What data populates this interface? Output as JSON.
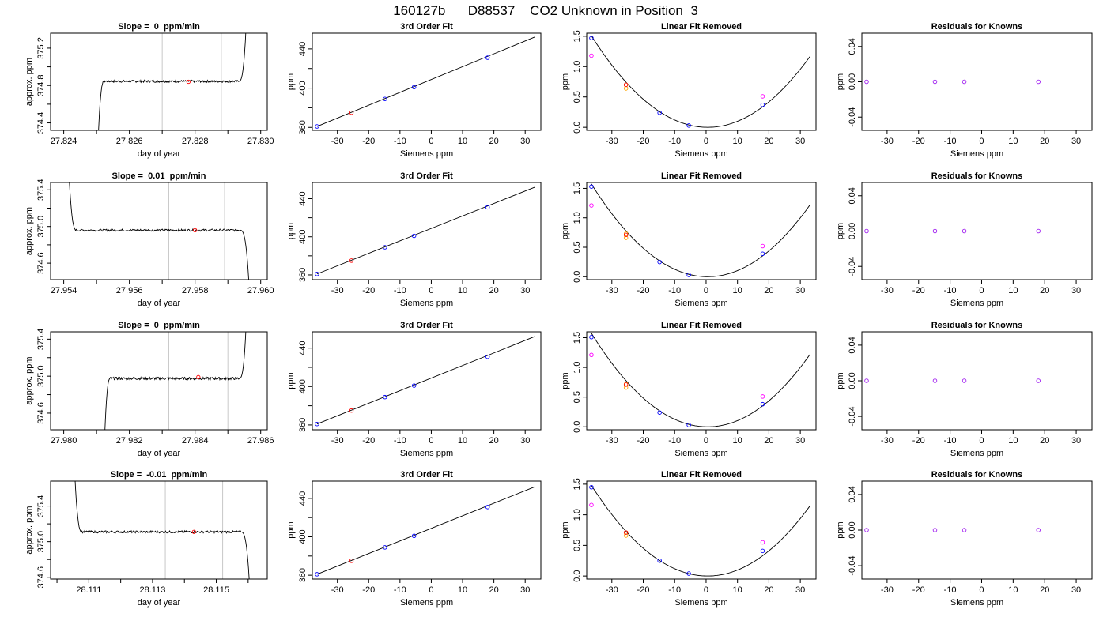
{
  "figure": {
    "title": "160127b      D88537    CO2 Unknown in Position  3"
  },
  "colors": {
    "trace": "#000000",
    "gray_line": "#c8c8c8",
    "red": "#ff0000",
    "blue": "#0000ff",
    "orange": "#ffa500",
    "magenta": "#ff00ff",
    "purple": "#a020f0"
  },
  "chart_data": [
    {
      "type": "line",
      "title": "Slope =  0  ppm/min",
      "xlabel": "day of year",
      "ylabel": "approx. ppm",
      "xlim": [
        27.8236,
        27.8302
      ],
      "ylim": [
        374.32,
        375.36
      ],
      "xticks": [
        27.824,
        27.826,
        27.828,
        27.83
      ],
      "xticklabels": [
        "27.824",
        "27.826",
        "27.828",
        "27.830"
      ],
      "xminor": [
        27.825,
        27.827,
        27.829
      ],
      "yticks": [
        374.4,
        374.8,
        375.2
      ],
      "yticklabels": [
        "374.4",
        "374.8",
        "375.2"
      ],
      "yminor": [
        374.6,
        375.0
      ],
      "vlines": [
        27.827,
        27.8288
      ],
      "trace_start": 27.825,
      "trace_end": 27.8296,
      "plateau": 374.845,
      "noise": 0.012,
      "end_dir": "up",
      "marker": {
        "x": 27.8278,
        "y": 374.84
      }
    },
    {
      "type": "line",
      "title": "3rd Order Fit",
      "xlabel": "Siemens ppm",
      "ylabel": "ppm",
      "xlim": [
        -38,
        35
      ],
      "ylim": [
        357,
        456
      ],
      "xticks": [
        -30,
        -20,
        -10,
        0,
        10,
        20,
        30
      ],
      "xticklabels": [
        "-30",
        "-20",
        "-10",
        "0",
        "10",
        "20",
        "30"
      ],
      "yticks": [
        360,
        400,
        440
      ],
      "yticklabels": [
        "360",
        "400",
        "440"
      ],
      "yminor": [
        380,
        420
      ],
      "line": {
        "x": [
          -36.5,
          33
        ],
        "y": [
          361,
          452
        ]
      },
      "blue_points": {
        "x": [
          -36.5,
          -14.8,
          -5.5,
          18
        ],
        "y": [
          361,
          389,
          401,
          431
        ]
      },
      "red_point": {
        "x": [
          -25.5
        ],
        "y": [
          375
        ]
      }
    },
    {
      "type": "scatter",
      "title": "Linear Fit Removed",
      "xlabel": "Siemens ppm",
      "ylabel": "ppm",
      "xlim": [
        -38,
        35
      ],
      "ylim": [
        -0.05,
        1.55
      ],
      "xticks": [
        -30,
        -20,
        -10,
        0,
        10,
        20,
        30
      ],
      "xticklabels": [
        "-30",
        "-20",
        "-10",
        "0",
        "10",
        "20",
        "30"
      ],
      "yticks": [
        0.0,
        0.5,
        1.0,
        1.5
      ],
      "yticklabels": [
        "0.0",
        "0.5",
        "1.0",
        "1.5"
      ],
      "curve": {
        "type": "quadratic",
        "vertex": 0.5,
        "a": 0.0011,
        "x_range": [
          -36.5,
          33
        ]
      },
      "blue_points": {
        "x": [
          -36.5,
          -14.8,
          -5.5,
          18
        ],
        "y": [
          1.47,
          0.24,
          0.03,
          0.37
        ]
      },
      "magenta_points": {
        "x": [
          -36.5,
          18
        ],
        "y": [
          1.18,
          0.51
        ]
      },
      "orange_points": {
        "x": [
          -25.5,
          -25.5
        ],
        "y": [
          0.7,
          0.64
        ]
      },
      "red_points": {
        "x": [
          -25.5
        ],
        "y": [
          0.7
        ]
      }
    },
    {
      "type": "scatter",
      "title": "Residuals for Knowns",
      "xlabel": "Siemens ppm",
      "ylabel": "ppm",
      "xlim": [
        -38,
        35
      ],
      "ylim": [
        -0.055,
        0.055
      ],
      "xticks": [
        -30,
        -20,
        -10,
        0,
        10,
        20,
        30
      ],
      "xticklabels": [
        "-30",
        "-20",
        "-10",
        "0",
        "10",
        "20",
        "30"
      ],
      "yticks": [
        -0.04,
        0.0,
        0.04
      ],
      "yticklabels": [
        "-0.04",
        "0.00",
        "0.04"
      ],
      "purple_points": {
        "x": [
          -36.5,
          -14.8,
          -5.5,
          18
        ],
        "y": [
          0,
          0,
          0,
          0
        ]
      }
    },
    {
      "type": "line",
      "title": "Slope =  0.01  ppm/min",
      "xlabel": "day of year",
      "ylabel": "approx. ppm",
      "xlim": [
        27.9536,
        27.9602
      ],
      "ylim": [
        374.42,
        375.48
      ],
      "xticks": [
        27.954,
        27.956,
        27.958,
        27.96
      ],
      "xticklabels": [
        "27.954",
        "27.956",
        "27.958",
        "27.960"
      ],
      "xminor": [
        27.955,
        27.957,
        27.959
      ],
      "yticks": [
        374.6,
        375.0,
        375.4
      ],
      "yticklabels": [
        "374.6",
        "375.0",
        "375.4"
      ],
      "yminor": [
        374.8,
        375.2
      ],
      "vlines": [
        27.9572,
        27.9589
      ],
      "trace_start": 27.9541,
      "trace_end": 27.9597,
      "plateau": 374.96,
      "noise": 0.012,
      "end_dir": "down",
      "marker": {
        "x": 27.958,
        "y": 374.96
      }
    },
    {
      "type": "line",
      "title": "3rd Order Fit",
      "xlabel": "Siemens ppm",
      "ylabel": "ppm",
      "xlim": [
        -38,
        35
      ],
      "ylim": [
        355,
        457
      ],
      "xticks": [
        -30,
        -20,
        -10,
        0,
        10,
        20,
        30
      ],
      "xticklabels": [
        "-30",
        "-20",
        "-10",
        "0",
        "10",
        "20",
        "30"
      ],
      "yticks": [
        360,
        400,
        440
      ],
      "yticklabels": [
        "360",
        "400",
        "440"
      ],
      "yminor": [
        380,
        420
      ],
      "line": {
        "x": [
          -36.5,
          33
        ],
        "y": [
          361,
          452
        ]
      },
      "blue_points": {
        "x": [
          -36.5,
          -14.8,
          -5.5,
          18
        ],
        "y": [
          361,
          389,
          401,
          431
        ]
      },
      "red_point": {
        "x": [
          -25.5
        ],
        "y": [
          375
        ]
      }
    },
    {
      "type": "scatter",
      "title": "Linear Fit Removed",
      "xlabel": "Siemens ppm",
      "ylabel": "ppm",
      "xlim": [
        -38,
        35
      ],
      "ylim": [
        -0.05,
        1.6
      ],
      "xticks": [
        -30,
        -20,
        -10,
        0,
        10,
        20,
        30
      ],
      "xticklabels": [
        "-30",
        "-20",
        "-10",
        "0",
        "10",
        "20",
        "30"
      ],
      "yticks": [
        0.0,
        0.5,
        1.0,
        1.5
      ],
      "yticklabels": [
        "0.0",
        "0.5",
        "1.0",
        "1.5"
      ],
      "curve": {
        "type": "quadratic",
        "vertex": 0.5,
        "a": 0.00115,
        "x_range": [
          -36.5,
          33
        ]
      },
      "blue_points": {
        "x": [
          -36.5,
          -14.8,
          -5.5,
          18
        ],
        "y": [
          1.53,
          0.25,
          0.03,
          0.39
        ]
      },
      "magenta_points": {
        "x": [
          -36.5,
          18
        ],
        "y": [
          1.21,
          0.52
        ]
      },
      "orange_points": {
        "x": [
          -25.5,
          -25.5
        ],
        "y": [
          0.73,
          0.66
        ]
      },
      "red_points": {
        "x": [
          -25.5
        ],
        "y": [
          0.71
        ]
      }
    },
    {
      "type": "scatter",
      "title": "Residuals for Knowns",
      "xlabel": "Siemens ppm",
      "ylabel": "ppm",
      "xlim": [
        -38,
        35
      ],
      "ylim": [
        -0.055,
        0.055
      ],
      "xticks": [
        -30,
        -20,
        -10,
        0,
        10,
        20,
        30
      ],
      "xticklabels": [
        "-30",
        "-20",
        "-10",
        "0",
        "10",
        "20",
        "30"
      ],
      "yticks": [
        -0.04,
        0.0,
        0.04
      ],
      "yticklabels": [
        "-0.04",
        "0.00",
        "0.04"
      ],
      "purple_points": {
        "x": [
          -36.5,
          -14.8,
          -5.5,
          18
        ],
        "y": [
          0,
          0,
          0,
          0
        ]
      }
    },
    {
      "type": "line",
      "title": "Slope =  0  ppm/min",
      "xlabel": "day of year",
      "ylabel": "approx. ppm",
      "xlim": [
        27.9796,
        27.9862
      ],
      "ylim": [
        374.42,
        375.48
      ],
      "xticks": [
        27.98,
        27.982,
        27.984,
        27.986
      ],
      "xticklabels": [
        "27.980",
        "27.982",
        "27.984",
        "27.986"
      ],
      "xminor": [
        27.981,
        27.983,
        27.985
      ],
      "yticks": [
        374.6,
        375.0,
        375.4
      ],
      "yticklabels": [
        "374.6",
        "375.0",
        "375.4"
      ],
      "yminor": [
        374.8,
        375.2
      ],
      "vlines": [
        27.9832,
        27.985
      ],
      "trace_start": 27.9812,
      "trace_end": 27.9856,
      "plateau": 374.975,
      "noise": 0.014,
      "end_dir": "up",
      "marker": {
        "x": 27.9841,
        "y": 374.99
      }
    },
    {
      "type": "line",
      "title": "3rd Order Fit",
      "xlabel": "Siemens ppm",
      "ylabel": "ppm",
      "xlim": [
        -38,
        35
      ],
      "ylim": [
        355,
        457
      ],
      "xticks": [
        -30,
        -20,
        -10,
        0,
        10,
        20,
        30
      ],
      "xticklabels": [
        "-30",
        "-20",
        "-10",
        "0",
        "10",
        "20",
        "30"
      ],
      "yticks": [
        360,
        400,
        440
      ],
      "yticklabels": [
        "360",
        "400",
        "440"
      ],
      "yminor": [
        380,
        420
      ],
      "line": {
        "x": [
          -36.5,
          33
        ],
        "y": [
          361,
          452
        ]
      },
      "blue_points": {
        "x": [
          -36.5,
          -14.8,
          -5.5,
          18
        ],
        "y": [
          361,
          389,
          401,
          431
        ]
      },
      "red_point": {
        "x": [
          -25.5
        ],
        "y": [
          375
        ]
      }
    },
    {
      "type": "scatter",
      "title": "Linear Fit Removed",
      "xlabel": "Siemens ppm",
      "ylabel": "ppm",
      "xlim": [
        -38,
        35
      ],
      "ylim": [
        -0.05,
        1.6
      ],
      "xticks": [
        -30,
        -20,
        -10,
        0,
        10,
        20,
        30
      ],
      "xticklabels": [
        "-30",
        "-20",
        "-10",
        "0",
        "10",
        "20",
        "30"
      ],
      "yticks": [
        0.0,
        0.5,
        1.0,
        1.5
      ],
      "yticklabels": [
        "0.0",
        "0.5",
        "1.0",
        "1.5"
      ],
      "curve": {
        "type": "quadratic",
        "vertex": 0.5,
        "a": 0.00115,
        "x_range": [
          -36.5,
          33
        ]
      },
      "blue_points": {
        "x": [
          -36.5,
          -14.8,
          -5.5,
          18
        ],
        "y": [
          1.51,
          0.24,
          0.03,
          0.38
        ]
      },
      "magenta_points": {
        "x": [
          -36.5,
          18
        ],
        "y": [
          1.21,
          0.51
        ]
      },
      "orange_points": {
        "x": [
          -25.5,
          -25.5
        ],
        "y": [
          0.72,
          0.66
        ]
      },
      "red_points": {
        "x": [
          -25.5
        ],
        "y": [
          0.71
        ]
      }
    },
    {
      "type": "scatter",
      "title": "Residuals for Knowns",
      "xlabel": "Siemens ppm",
      "ylabel": "ppm",
      "xlim": [
        -38,
        35
      ],
      "ylim": [
        -0.055,
        0.055
      ],
      "xticks": [
        -30,
        -20,
        -10,
        0,
        10,
        20,
        30
      ],
      "xticklabels": [
        "-30",
        "-20",
        "-10",
        "0",
        "10",
        "20",
        "30"
      ],
      "yticks": [
        -0.04,
        0.0,
        0.04
      ],
      "yticklabels": [
        "-0.04",
        "0.00",
        "0.04"
      ],
      "purple_points": {
        "x": [
          -36.5,
          -14.8,
          -5.5,
          18
        ],
        "y": [
          0,
          0,
          0,
          0
        ]
      }
    },
    {
      "type": "line",
      "title": "Slope =  -0.01  ppm/min",
      "xlabel": "day of year",
      "ylabel": "approx. ppm",
      "xlim": [
        28.1098,
        28.1166
      ],
      "ylim": [
        374.58,
        375.68
      ],
      "xticks": [
        28.111,
        28.113,
        28.115
      ],
      "xticklabels": [
        "28.111",
        "28.113",
        "28.115"
      ],
      "xminor": [
        28.11,
        28.112,
        28.114,
        28.116
      ],
      "yticks": [
        374.6,
        375.0,
        375.4
      ],
      "yticklabels": [
        "374.6",
        "375.0",
        "375.4"
      ],
      "yminor": [
        374.8,
        375.2
      ],
      "vlines": [
        28.1134,
        28.1152
      ],
      "trace_start": 28.1105,
      "trace_end": 28.1161,
      "plateau": 375.11,
      "noise": 0.013,
      "end_dir": "down",
      "marker": {
        "x": 28.1143,
        "y": 375.11
      }
    },
    {
      "type": "line",
      "title": "3rd Order Fit",
      "xlabel": "Siemens ppm",
      "ylabel": "ppm",
      "xlim": [
        -38,
        35
      ],
      "ylim": [
        356,
        458
      ],
      "xticks": [
        -30,
        -20,
        -10,
        0,
        10,
        20,
        30
      ],
      "xticklabels": [
        "-30",
        "-20",
        "-10",
        "0",
        "10",
        "20",
        "30"
      ],
      "yticks": [
        360,
        400,
        440
      ],
      "yticklabels": [
        "360",
        "400",
        "440"
      ],
      "yminor": [
        380,
        420
      ],
      "line": {
        "x": [
          -36.5,
          33
        ],
        "y": [
          361,
          452
        ]
      },
      "blue_points": {
        "x": [
          -36.5,
          -14.8,
          -5.5,
          18
        ],
        "y": [
          361,
          389,
          401,
          431
        ]
      },
      "red_point": {
        "x": [
          -25.5
        ],
        "y": [
          375
        ]
      }
    },
    {
      "type": "scatter",
      "title": "Linear Fit Removed",
      "xlabel": "Siemens ppm",
      "ylabel": "ppm",
      "xlim": [
        -38,
        35
      ],
      "ylim": [
        -0.05,
        1.55
      ],
      "xticks": [
        -30,
        -20,
        -10,
        0,
        10,
        20,
        30
      ],
      "xticklabels": [
        "-30",
        "-20",
        "-10",
        "0",
        "10",
        "20",
        "30"
      ],
      "yticks": [
        0.0,
        0.5,
        1.0,
        1.5
      ],
      "yticklabels": [
        "0.0",
        "0.5",
        "1.0",
        "1.5"
      ],
      "curve": {
        "type": "quadratic",
        "vertex": 0.5,
        "a": 0.00108,
        "x_range": [
          -36.5,
          33
        ]
      },
      "blue_points": {
        "x": [
          -36.5,
          -14.8,
          -5.5,
          18
        ],
        "y": [
          1.45,
          0.25,
          0.04,
          0.41
        ]
      },
      "magenta_points": {
        "x": [
          -36.5,
          18
        ],
        "y": [
          1.16,
          0.55
        ]
      },
      "orange_points": {
        "x": [
          -25.5,
          -25.5
        ],
        "y": [
          0.71,
          0.66
        ]
      },
      "red_points": {
        "x": [
          -25.5
        ],
        "y": [
          0.71
        ]
      }
    },
    {
      "type": "scatter",
      "title": "Residuals for Knowns",
      "xlabel": "Siemens ppm",
      "ylabel": "ppm",
      "xlim": [
        -38,
        35
      ],
      "ylim": [
        -0.055,
        0.055
      ],
      "xticks": [
        -30,
        -20,
        -10,
        0,
        10,
        20,
        30
      ],
      "xticklabels": [
        "-30",
        "-20",
        "-10",
        "0",
        "10",
        "20",
        "30"
      ],
      "yticks": [
        -0.04,
        0.0,
        0.04
      ],
      "yticklabels": [
        "-0.04",
        "0.00",
        "0.04"
      ],
      "purple_points": {
        "x": [
          -36.5,
          -14.8,
          -5.5,
          18
        ],
        "y": [
          0,
          0,
          0,
          0
        ]
      }
    }
  ]
}
